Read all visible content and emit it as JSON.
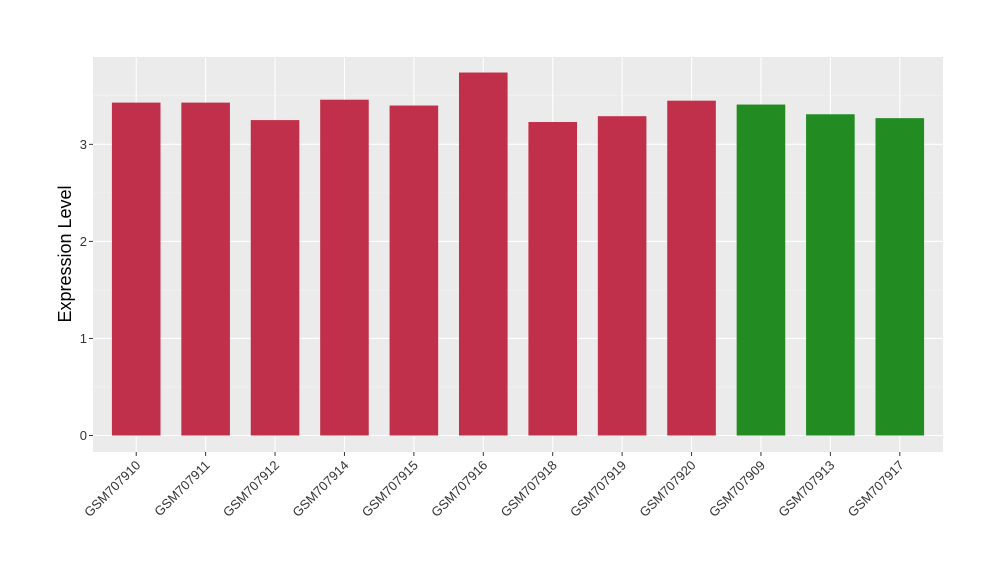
{
  "chart_data": {
    "type": "bar",
    "title": "",
    "xlabel": "",
    "ylabel": "Expression Level",
    "ylim": [
      -0.17,
      3.9
    ],
    "yticks": [
      0,
      1,
      2,
      3
    ],
    "grid": true,
    "legend": "none",
    "categories": [
      "GSM707910",
      "GSM707911",
      "GSM707912",
      "GSM707914",
      "GSM707915",
      "GSM707916",
      "GSM707918",
      "GSM707919",
      "GSM707920",
      "GSM707909",
      "GSM707913",
      "GSM707917"
    ],
    "values": [
      3.43,
      3.43,
      3.25,
      3.46,
      3.4,
      3.74,
      3.23,
      3.29,
      3.45,
      3.41,
      3.31,
      3.27
    ],
    "bar_colors": [
      "#c0304a",
      "#c0304a",
      "#c0304a",
      "#c0304a",
      "#c0304a",
      "#c0304a",
      "#c0304a",
      "#c0304a",
      "#c0304a",
      "#228b22",
      "#228b22",
      "#228b22"
    ]
  },
  "colors": {
    "panel_background": "#ebebeb",
    "grid_major": "#ffffff",
    "grid_minor": "#f5f5f5",
    "tick": "#333333"
  }
}
